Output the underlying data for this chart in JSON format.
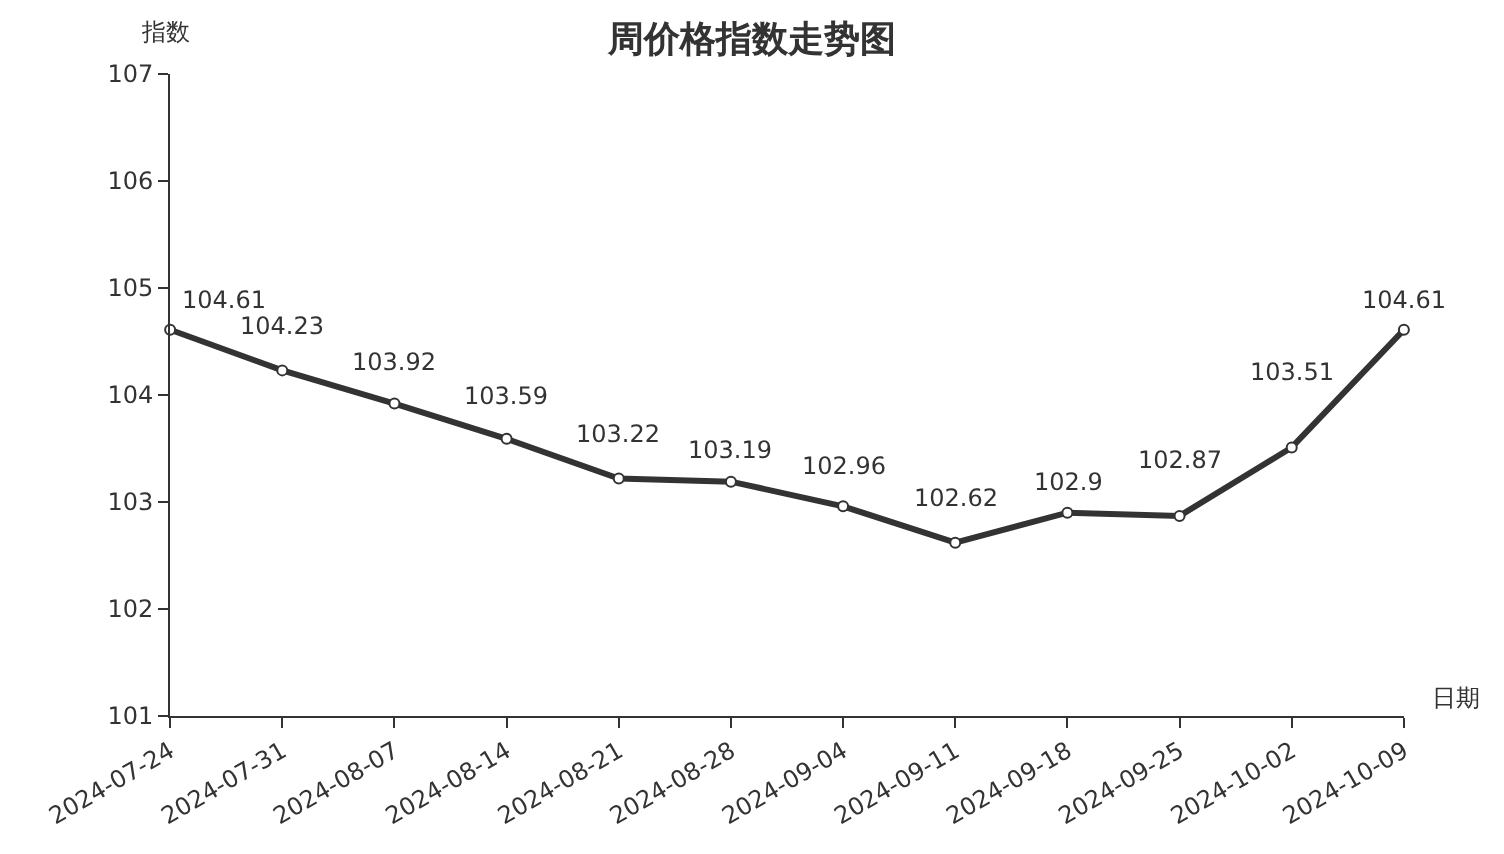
{
  "chart_data": {
    "type": "line",
    "title": "周价格指数走势图",
    "xlabel": "日期",
    "ylabel": "指数",
    "categories": [
      "2024-07-24",
      "2024-07-31",
      "2024-08-07",
      "2024-08-14",
      "2024-08-21",
      "2024-08-28",
      "2024-09-04",
      "2024-09-11",
      "2024-09-18",
      "2024-09-25",
      "2024-10-02",
      "2024-10-09"
    ],
    "series": [
      {
        "color": "#333333",
        "values": [
          104.61,
          104.23,
          103.92,
          103.59,
          103.22,
          103.19,
          102.96,
          102.62,
          102.9,
          102.87,
          103.51,
          104.61
        ]
      }
    ],
    "ylim": [
      101,
      107
    ],
    "yticks": [
      101,
      102,
      103,
      104,
      105,
      106,
      107
    ],
    "data_labels": true,
    "marker": "circle",
    "line_style": "solid",
    "grid": false
  }
}
